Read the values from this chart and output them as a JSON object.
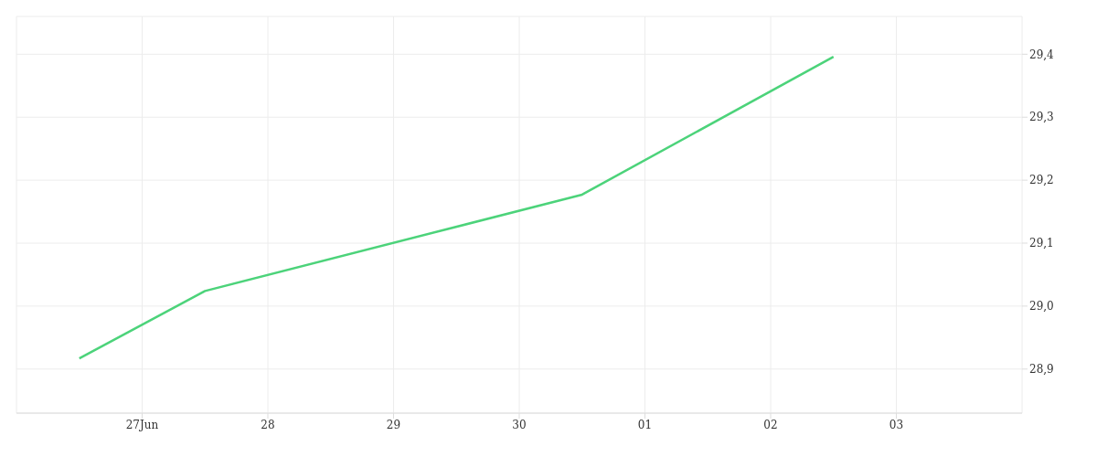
{
  "chart_data": {
    "type": "line",
    "x": [
      "--06-26T12:00",
      "--06-27T12:00",
      "--06-30T12:00",
      "--07-02T12:00"
    ],
    "series": [
      {
        "color": "#4cd37a",
        "values": [
          28.917,
          29.024,
          29.177,
          29.396
        ]
      }
    ],
    "xlim": [
      "--06-26",
      "--07-04"
    ],
    "xticks": [
      {
        "value": "--06-27",
        "label": "27Jun"
      },
      {
        "value": "--06-28",
        "label": "28"
      },
      {
        "value": "--06-29",
        "label": "29"
      },
      {
        "value": "--06-30",
        "label": "30"
      },
      {
        "value": "--07-01",
        "label": "01"
      },
      {
        "value": "--07-02",
        "label": "02"
      },
      {
        "value": "--07-03",
        "label": "03"
      }
    ],
    "ylim": [
      28.83,
      29.46
    ],
    "yticks": [
      {
        "value": 28.9,
        "label": "28,9"
      },
      {
        "value": 29.0,
        "label": "29,0"
      },
      {
        "value": 29.1,
        "label": "29,1"
      },
      {
        "value": 29.2,
        "label": "29,2"
      },
      {
        "value": 29.3,
        "label": "29,3"
      },
      {
        "value": 29.4,
        "label": "29,4"
      }
    ],
    "grid": true,
    "legend": false,
    "marker": "none",
    "line_style": "solid"
  }
}
